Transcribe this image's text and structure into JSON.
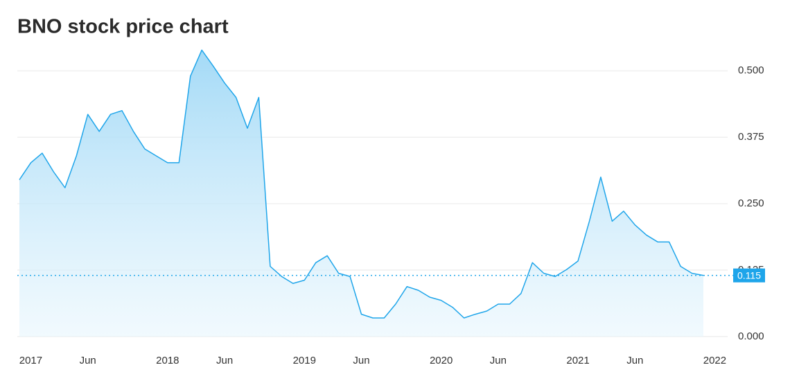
{
  "chart_data": {
    "type": "area",
    "title": "BNO stock price chart",
    "x": [
      "2016-12",
      "2017-01",
      "2017-02",
      "2017-03",
      "2017-04",
      "2017-05",
      "2017-06",
      "2017-07",
      "2017-08",
      "2017-09",
      "2017-10",
      "2017-11",
      "2017-12",
      "2018-01",
      "2018-02",
      "2018-03",
      "2018-04",
      "2018-05",
      "2018-06",
      "2018-07",
      "2018-08",
      "2018-09",
      "2018-10",
      "2018-11",
      "2018-12",
      "2019-01",
      "2019-02",
      "2019-03",
      "2019-04",
      "2019-05",
      "2019-06",
      "2019-07",
      "2019-08",
      "2019-09",
      "2019-10",
      "2019-11",
      "2019-12",
      "2020-01",
      "2020-02",
      "2020-03",
      "2020-04",
      "2020-05",
      "2020-06",
      "2020-07",
      "2020-08",
      "2020-09",
      "2020-10",
      "2020-11",
      "2020-12",
      "2021-01",
      "2021-02",
      "2021-03",
      "2021-04",
      "2021-05",
      "2021-06",
      "2021-07",
      "2021-08",
      "2021-09",
      "2021-10",
      "2021-11",
      "2021-12"
    ],
    "values": [
      0.295,
      0.327,
      0.345,
      0.31,
      0.28,
      0.34,
      0.418,
      0.386,
      0.418,
      0.425,
      0.386,
      0.353,
      0.34,
      0.327,
      0.327,
      0.49,
      0.539,
      0.509,
      0.477,
      0.45,
      0.392,
      0.45,
      0.132,
      0.113,
      0.1,
      0.106,
      0.139,
      0.152,
      0.119,
      0.113,
      0.042,
      0.035,
      0.035,
      0.061,
      0.094,
      0.087,
      0.074,
      0.068,
      0.055,
      0.035,
      0.042,
      0.048,
      0.061,
      0.061,
      0.081,
      0.139,
      0.119,
      0.113,
      0.126,
      0.142,
      0.217,
      0.3,
      0.217,
      0.236,
      0.21,
      0.191,
      0.178,
      0.178,
      0.132,
      0.119,
      0.115
    ],
    "color": "#1ea5ea",
    "xlim": [
      "2016-12",
      "2021-12"
    ],
    "xticks": [
      {
        "value": "2017-01",
        "label": "2017"
      },
      {
        "value": "2017-06",
        "label": "Jun"
      },
      {
        "value": "2018-01",
        "label": "2018"
      },
      {
        "value": "2018-06",
        "label": "Jun"
      },
      {
        "value": "2019-01",
        "label": "2019"
      },
      {
        "value": "2019-06",
        "label": "Jun"
      },
      {
        "value": "2020-01",
        "label": "2020"
      },
      {
        "value": "2020-06",
        "label": "Jun"
      },
      {
        "value": "2021-01",
        "label": "2021"
      },
      {
        "value": "2021-06",
        "label": "Jun"
      },
      {
        "value": "2022-01",
        "label": "2022"
      }
    ],
    "ylim": [
      -0.025,
      0.555
    ],
    "yticks": [
      {
        "value": 0,
        "label": "0.000"
      },
      {
        "value": 0.125,
        "label": "0.125"
      },
      {
        "value": 0.25,
        "label": "0.250"
      },
      {
        "value": 0.375,
        "label": "0.375"
      },
      {
        "value": 0.5,
        "label": "0.500"
      }
    ],
    "grid": true,
    "last_price": 0.115
  }
}
